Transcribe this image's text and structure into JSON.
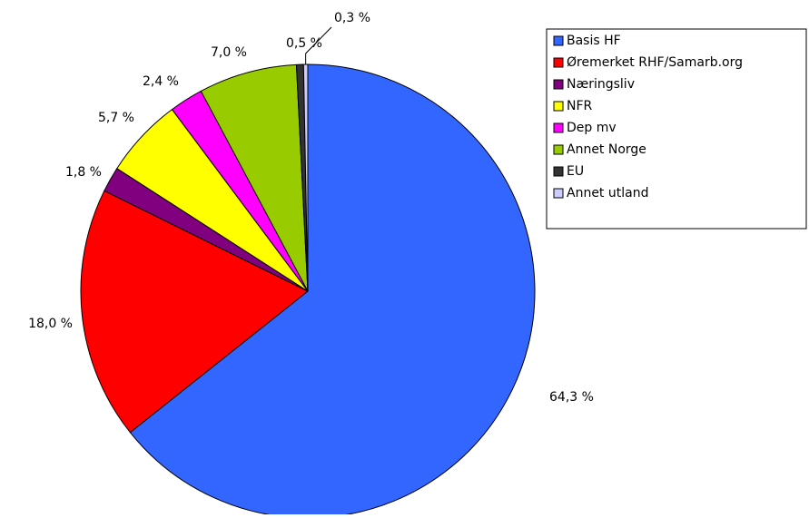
{
  "chart_data": {
    "type": "pie",
    "categories": [
      "Basis HF",
      "Øremerket RHF/Samarb.org",
      "Næringsliv",
      "NFR",
      "Dep mv",
      "Annet Norge",
      "EU",
      "Annet utland"
    ],
    "values": [
      64.3,
      18.0,
      1.8,
      5.7,
      2.4,
      7.0,
      0.5,
      0.3
    ],
    "value_labels": [
      "64,3 %",
      "18,0 %",
      "1,8 %",
      "5,7 %",
      "2,4 %",
      "7,0 %",
      "0,5 %",
      "0,3 %"
    ],
    "colors": [
      "#3366ff",
      "#ff0000",
      "#800080",
      "#ffff00",
      "#ff00ff",
      "#99cc00",
      "#333333",
      "#ccccff"
    ],
    "legend": "right"
  }
}
